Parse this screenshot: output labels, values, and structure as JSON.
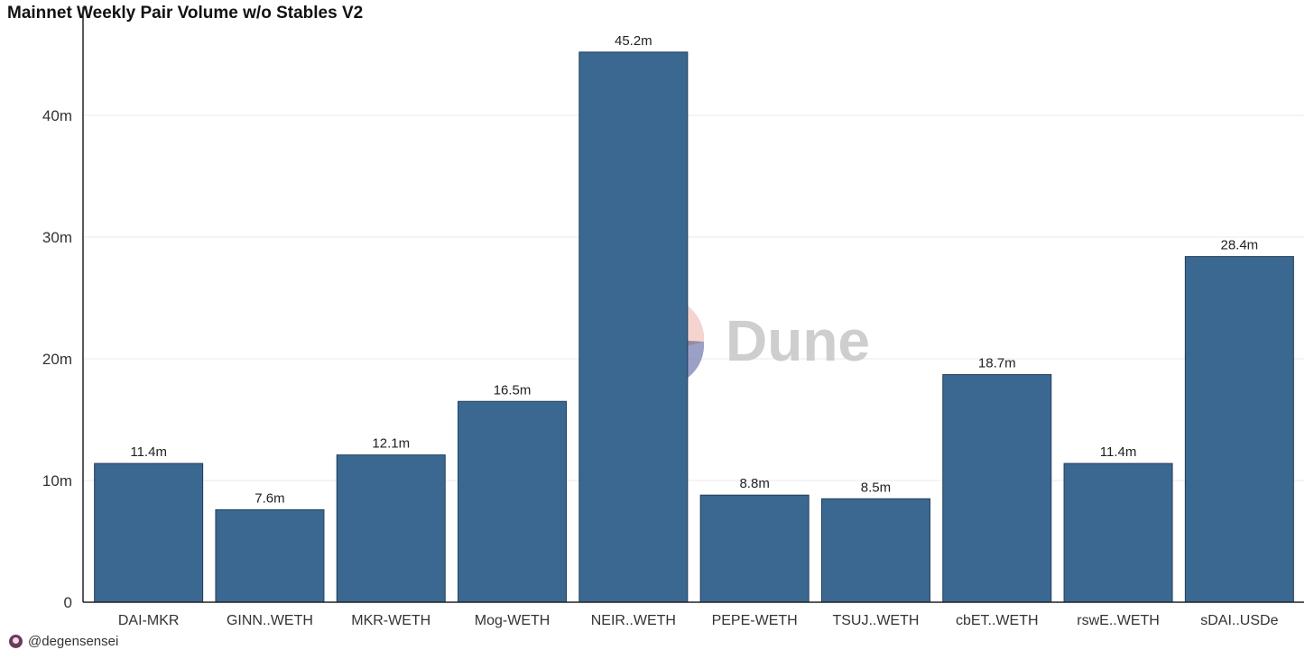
{
  "title": "Mainnet Weekly Pair Volume w/o Stables V2",
  "watermark": "Dune",
  "author": "@degensensei",
  "colors": {
    "bar": "#3b6890",
    "bar_edge": "#1f3d5c",
    "grid": "#e8e8e8",
    "axis": "#222222"
  },
  "chart_data": {
    "type": "bar",
    "title": "Mainnet Weekly Pair Volume w/o Stables V2",
    "xlabel": "",
    "ylabel": "",
    "ylim": [
      0,
      46
    ],
    "yticks": [
      {
        "value": 0,
        "label": "0"
      },
      {
        "value": 10,
        "label": "10m"
      },
      {
        "value": 20,
        "label": "20m"
      },
      {
        "value": 30,
        "label": "30m"
      },
      {
        "value": 40,
        "label": "40m"
      }
    ],
    "grid": true,
    "legend": "none",
    "categories": [
      "DAI-MKR",
      "GINN..WETH",
      "MKR-WETH",
      "Mog-WETH",
      "NEIR..WETH",
      "PEPE-WETH",
      "TSUJ..WETH",
      "cbET..WETH",
      "rswE..WETH",
      "sDAI..USDe"
    ],
    "values": [
      11.4,
      7.6,
      12.1,
      16.5,
      45.2,
      8.8,
      8.5,
      18.7,
      11.4,
      28.4
    ],
    "value_labels": [
      "11.4m",
      "7.6m",
      "12.1m",
      "16.5m",
      "45.2m",
      "8.8m",
      "8.5m",
      "18.7m",
      "11.4m",
      "28.4m"
    ]
  }
}
